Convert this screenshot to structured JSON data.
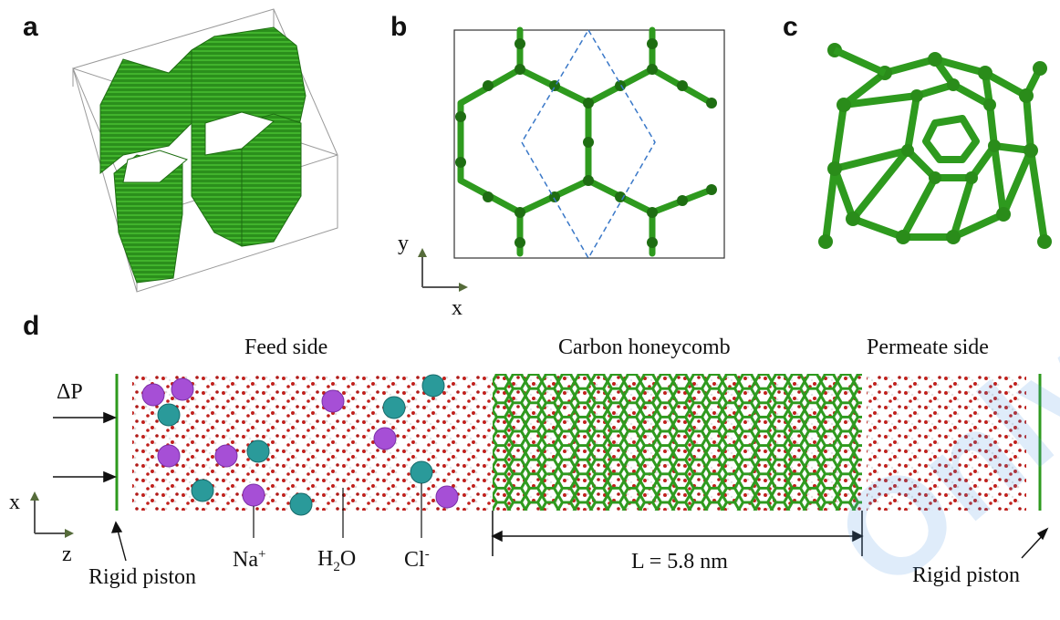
{
  "panels": {
    "a": {
      "letter": "a"
    },
    "b": {
      "letter": "b",
      "axis_y": "y",
      "axis_x": "x"
    },
    "c": {
      "letter": "c"
    },
    "d": {
      "letter": "d",
      "feed_side": "Feed side",
      "honeycomb": "Carbon honeycomb",
      "permeate_side": "Permeate side",
      "delta_p": "ΔP",
      "axis_x": "x",
      "axis_z": "z",
      "rigid_piston_left": "Rigid piston",
      "rigid_piston_right": "Rigid piston",
      "na_base": "Na",
      "na_sup": "+",
      "h2o_h": "H",
      "h2o_sub": "2",
      "h2o_o": "O",
      "cl_base": "Cl",
      "cl_sup": "-",
      "length_label": "L = 5.8 nm"
    }
  },
  "watermark": "Only",
  "colors": {
    "carbon_green": "#2e9a1e",
    "dark_green": "#1e6e12",
    "sodium": "#a64fd6",
    "chloride": "#2a9a9a",
    "oxygen": "#c0201c",
    "hydrogen": "#e8e8e8",
    "cell_dash": "#3a78c8"
  }
}
